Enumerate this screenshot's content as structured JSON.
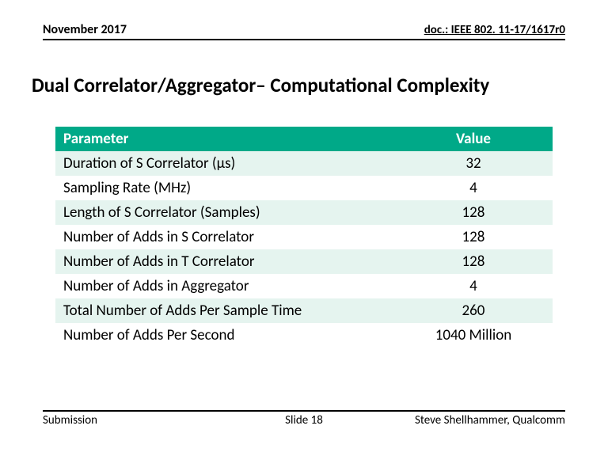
{
  "header": {
    "date": "November 2017",
    "docref": "doc.: IEEE 802. 11-17/1617r0"
  },
  "title": "Dual Correlator/Aggregator– Computational Complexity",
  "table": {
    "columns": [
      "Parameter",
      "Value"
    ],
    "colors": {
      "header_bg": "#00a988",
      "header_text": "#ffffff",
      "row_odd_bg": "#e5f4ef",
      "row_even_bg": "#ffffff",
      "text": "#000000"
    },
    "rows": [
      {
        "param": "Duration of S Correlator (µs)",
        "value": "32"
      },
      {
        "param": "Sampling Rate (MHz)",
        "value": "4"
      },
      {
        "param": "Length of S Correlator (Samples)",
        "value": "128"
      },
      {
        "param": "Number of Adds in S Correlator",
        "value": "128"
      },
      {
        "param": "Number of Adds in T Correlator",
        "value": "128"
      },
      {
        "param": "Number of Adds in Aggregator",
        "value": "4"
      },
      {
        "param": "Total Number of Adds Per Sample Time",
        "value": "260"
      },
      {
        "param": "Number of Adds Per Second",
        "value": "1040 Million"
      }
    ]
  },
  "footer": {
    "left": "Submission",
    "center": "Slide 18",
    "right": "Steve Shellhammer, Qualcomm"
  }
}
